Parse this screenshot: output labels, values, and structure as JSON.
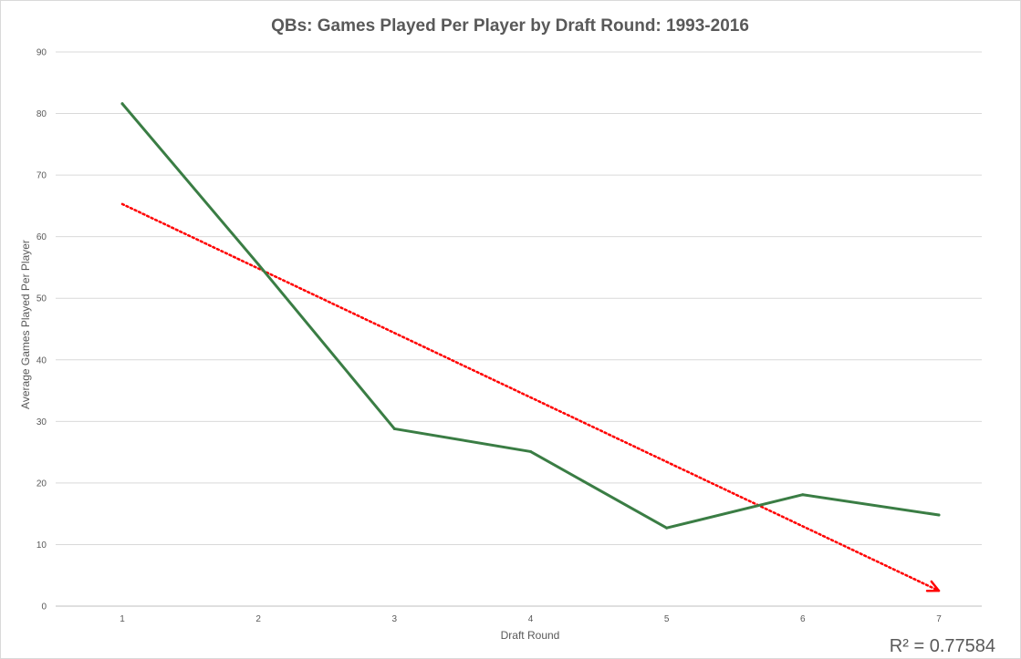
{
  "chart_data": {
    "type": "line",
    "title": "QBs: Games Played Per Player by Draft Round: 1993-2016",
    "xlabel": "Draft Round",
    "ylabel": "Average Games Played Per Player",
    "categories": [
      "1",
      "2",
      "3",
      "4",
      "5",
      "6",
      "7"
    ],
    "ylim": [
      0,
      90
    ],
    "yticks": [
      0,
      10,
      20,
      30,
      40,
      50,
      60,
      70,
      80,
      90
    ],
    "grid": true,
    "series": [
      {
        "values": [
          81.6,
          55.5,
          28.8,
          25.1,
          12.7,
          18.1,
          14.8
        ],
        "color": "#3a7d44",
        "style": "solid"
      }
    ],
    "trendline": {
      "type": "linear",
      "start": 65.3,
      "end": 2.5,
      "color": "#ff0000",
      "style": "dotted",
      "r_squared_label": "R² = 0.77584"
    }
  }
}
